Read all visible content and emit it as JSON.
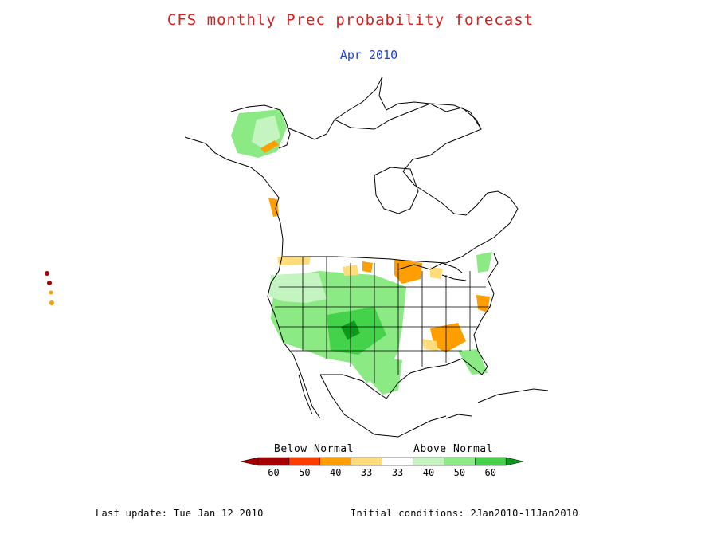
{
  "title": "CFS monthly Prec probability forecast",
  "subtitle": "Apr 2010",
  "colors": {
    "title": "#d81e1e",
    "subtitle": "#1f3fd6",
    "outline": "#000000",
    "background": "#ffffff"
  },
  "legend": {
    "below_label": "Below Normal",
    "above_label": "Above Normal",
    "bins": [
      {
        "label": "60",
        "color": "#a60000"
      },
      {
        "label": "50",
        "color": "#ff3b00"
      },
      {
        "label": "40",
        "color": "#ff9e00"
      },
      {
        "label": "33",
        "color": "#ffdc7a"
      },
      {
        "label": "33",
        "color": "#ffffff"
      },
      {
        "label": "40",
        "color": "#c4f5c0"
      },
      {
        "label": "50",
        "color": "#8cea84"
      },
      {
        "label": "60",
        "color": "#45d24b"
      }
    ],
    "below_end_color": "#a60000",
    "above_end_color": "#0c9a1d"
  },
  "footer": {
    "last_update": "Last update: Tue Jan 12 2010",
    "initial_conditions": "Initial conditions: 2Jan2010-11Jan2010"
  }
}
